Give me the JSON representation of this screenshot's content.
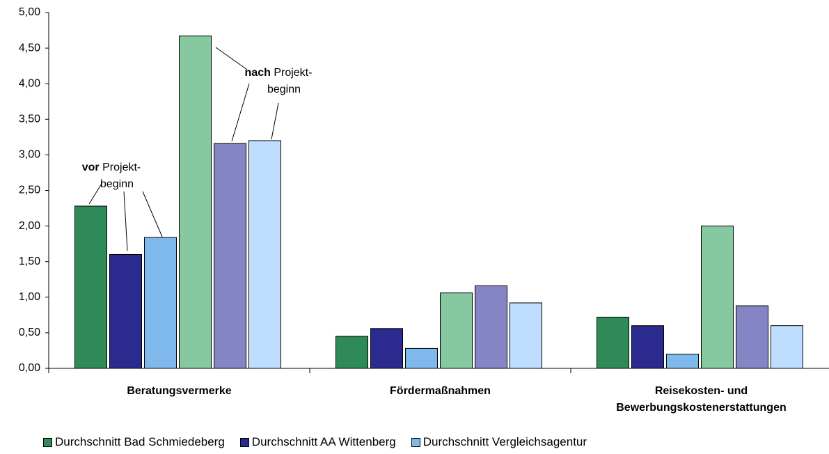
{
  "chart_data": {
    "type": "bar",
    "categories": [
      "Beratungsvermerke",
      "Fördermaßnahmen",
      "Reisekosten- und Bewerbungskostenerstattungen"
    ],
    "series": [
      {
        "name": "Durchschnitt Bad Schmiedeberg",
        "color": "#2e8b57",
        "color_after": "#86c9a0",
        "values": [
          2.28,
          0.45,
          0.72
        ],
        "values_after": [
          4.67,
          1.06,
          2.0
        ]
      },
      {
        "name": "Durchschnitt AA Wittenberg",
        "color": "#2b2b8f",
        "color_after": "#8585c6",
        "values": [
          1.6,
          0.56,
          0.6
        ],
        "values_after": [
          3.16,
          1.16,
          0.88
        ]
      },
      {
        "name": "Durchschnitt Vergleichsagentur",
        "color": "#7fb8ea",
        "color_after": "#bfdeff",
        "values": [
          1.84,
          0.28,
          0.2
        ],
        "values_after": [
          3.2,
          0.92,
          0.6
        ]
      }
    ],
    "annotations": [
      {
        "bold": "vor",
        "rest": "Projekt-",
        "line2": "beginn"
      },
      {
        "bold": "nach",
        "rest": "Projekt-",
        "line2": "beginn"
      }
    ],
    "ylim": [
      0,
      5
    ],
    "yticks": [
      {
        "value": 0,
        "label": "0,00"
      },
      {
        "value": 0.5,
        "label": "0,50"
      },
      {
        "value": 1,
        "label": "1,00"
      },
      {
        "value": 1.5,
        "label": "1,50"
      },
      {
        "value": 2,
        "label": "2,00"
      },
      {
        "value": 2.5,
        "label": "2,50"
      },
      {
        "value": 3,
        "label": "3,00"
      },
      {
        "value": 3.5,
        "label": "3,50"
      },
      {
        "value": 4,
        "label": "4,00"
      },
      {
        "value": 4.5,
        "label": "4,50"
      },
      {
        "value": 5,
        "label": "5,00"
      }
    ]
  }
}
